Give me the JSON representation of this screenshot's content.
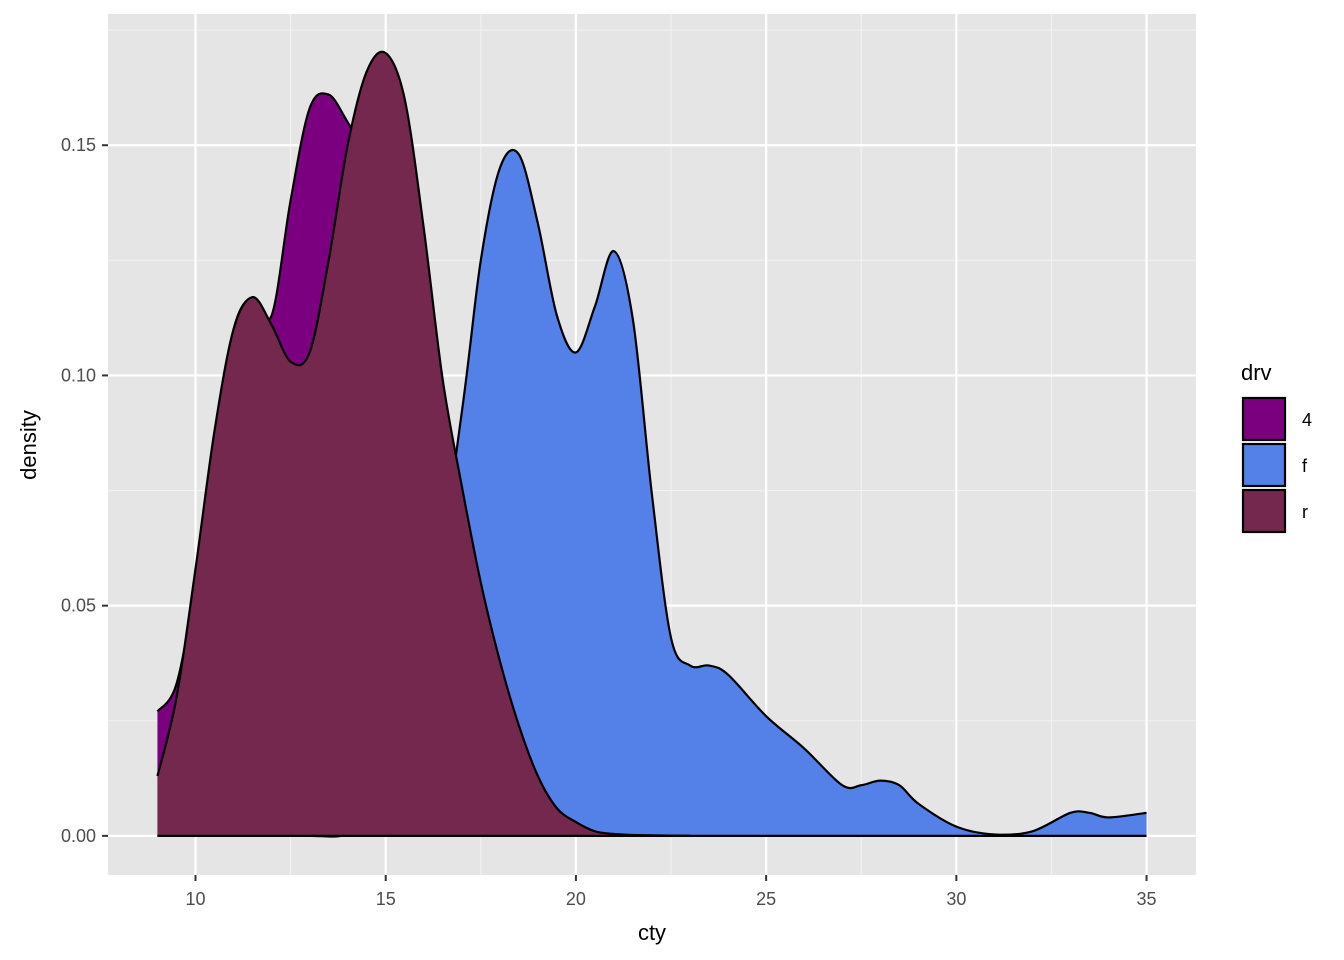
{
  "chart_data": {
    "type": "area",
    "subtype": "density",
    "xlabel": "cty",
    "ylabel": "density",
    "xlim": [
      7.7,
      36.3
    ],
    "ylim": [
      -0.0085,
      0.1785
    ],
    "x_ticks": [
      10,
      15,
      20,
      25,
      30,
      35
    ],
    "x_minor_ticks": [
      12.5,
      17.5,
      22.5,
      27.5,
      32.5
    ],
    "y_ticks": [
      0.0,
      0.05,
      0.1,
      0.15
    ],
    "y_tick_labels": [
      "0.00",
      "0.05",
      "0.10",
      "0.15"
    ],
    "y_minor_ticks": [
      0.025,
      0.075,
      0.125,
      0.175
    ],
    "grid": true,
    "panel_background": "#E5E5E5",
    "legend": {
      "title": "drv",
      "position": "right",
      "entries": [
        {
          "label": "4",
          "color": "#7A007F"
        },
        {
          "label": "f",
          "color": "#5381E8"
        },
        {
          "label": "r",
          "color": "#75284D"
        }
      ]
    },
    "series": [
      {
        "name": "f",
        "color": "#5381E8",
        "x": [
          9,
          10,
          11,
          12,
          13,
          14,
          15,
          16,
          17,
          17.5,
          18,
          18.5,
          19,
          19.5,
          20,
          20.5,
          21,
          21.5,
          22,
          22.5,
          23,
          23.5,
          24,
          25,
          26,
          27,
          27.5,
          28,
          28.5,
          29,
          30,
          31,
          32,
          33,
          33.5,
          34,
          35
        ],
        "values": [
          0,
          0,
          0,
          0,
          0,
          0.0003,
          0.005,
          0.035,
          0.092,
          0.125,
          0.145,
          0.148,
          0.133,
          0.113,
          0.105,
          0.115,
          0.127,
          0.112,
          0.074,
          0.043,
          0.037,
          0.037,
          0.035,
          0.026,
          0.019,
          0.011,
          0.011,
          0.012,
          0.011,
          0.007,
          0.002,
          0.0003,
          0.001,
          0.005,
          0.005,
          0.004,
          0.005
        ]
      },
      {
        "name": "4",
        "color": "#7A007F",
        "x": [
          9,
          9.5,
          10,
          10.5,
          11,
          11.5,
          12,
          12.5,
          13,
          13.5,
          14,
          14.5
        ],
        "values": [
          0.027,
          0.033,
          0.055,
          0.085,
          0.11,
          0.117,
          0.113,
          0.138,
          0.158,
          0.161,
          0.155,
          0.148
        ]
      },
      {
        "name": "r",
        "color": "#75284D",
        "x": [
          9,
          9.5,
          10,
          10.5,
          11,
          11.5,
          12,
          12.5,
          13,
          13.5,
          14,
          14.5,
          15,
          15.5,
          16,
          16.5,
          17,
          17.5,
          18,
          18.5,
          19,
          19.5,
          20,
          20.5,
          21,
          21.5,
          22,
          23
        ],
        "values": [
          0.013,
          0.03,
          0.058,
          0.088,
          0.11,
          0.117,
          0.111,
          0.103,
          0.105,
          0.125,
          0.15,
          0.166,
          0.17,
          0.16,
          0.132,
          0.099,
          0.076,
          0.055,
          0.038,
          0.024,
          0.013,
          0.006,
          0.003,
          0.001,
          0.0004,
          0.0002,
          0.0001,
          0
        ]
      }
    ]
  }
}
